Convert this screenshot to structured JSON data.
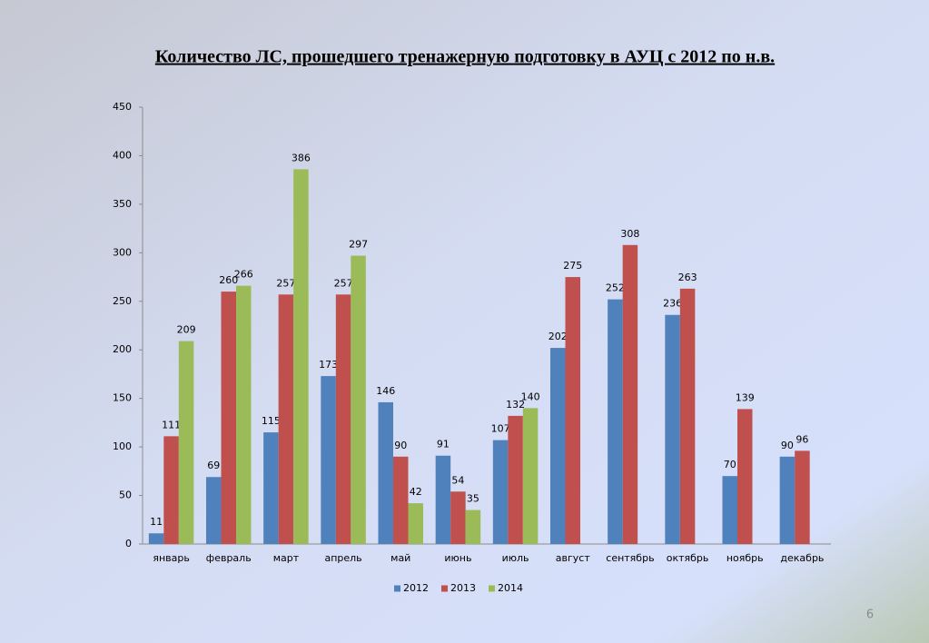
{
  "chart_data": {
    "type": "bar",
    "title": "Количество ЛС,  прошедшего тренажерную подготовку в АУЦ с 2012 по н.в.",
    "categories": [
      "январь",
      "февраль",
      "март",
      "апрель",
      "май",
      "июнь",
      "июль",
      "август",
      "сентябрь",
      "октябрь",
      "ноябрь",
      "декабрь"
    ],
    "series": [
      {
        "name": "2012",
        "color": "#4f81bd",
        "values": [
          11,
          69,
          115,
          173,
          146,
          91,
          107,
          202,
          252,
          236,
          70,
          90
        ]
      },
      {
        "name": "2013",
        "color": "#c0504d",
        "values": [
          111,
          260,
          257,
          257,
          90,
          54,
          132,
          275,
          308,
          263,
          139,
          96
        ]
      },
      {
        "name": "2014",
        "color": "#9bbb59",
        "values": [
          209,
          266,
          386,
          297,
          42,
          35,
          140,
          null,
          null,
          null,
          null,
          null
        ]
      }
    ],
    "ylim": [
      0,
      450
    ],
    "yticks": [
      0,
      50,
      100,
      150,
      200,
      250,
      300,
      350,
      400,
      450
    ],
    "grid": false,
    "legend": "bottom"
  },
  "page_number": "6"
}
